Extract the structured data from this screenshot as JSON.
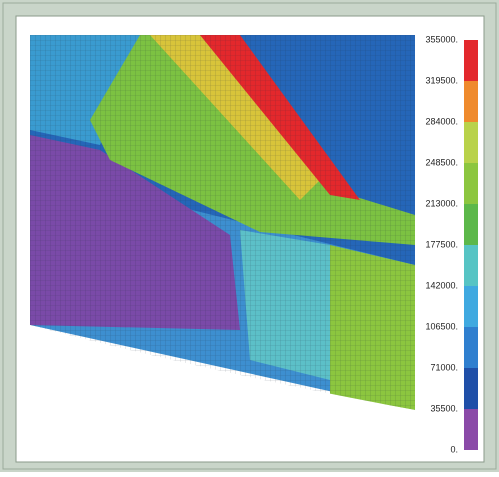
{
  "legend": {
    "labels": [
      "355000.",
      "319500.",
      "284000.",
      "248500.",
      "213000.",
      "177500.",
      "142000.",
      "106500.",
      "71000.",
      "35500.",
      "0."
    ],
    "colors": [
      "#e3282c",
      "#ef8a2c",
      "#b9d24a",
      "#8cc63f",
      "#5cb84a",
      "#56c4c4",
      "#3fa9e0",
      "#2f7fcf",
      "#1f4fa8",
      "#8a4aa8"
    ]
  }
}
